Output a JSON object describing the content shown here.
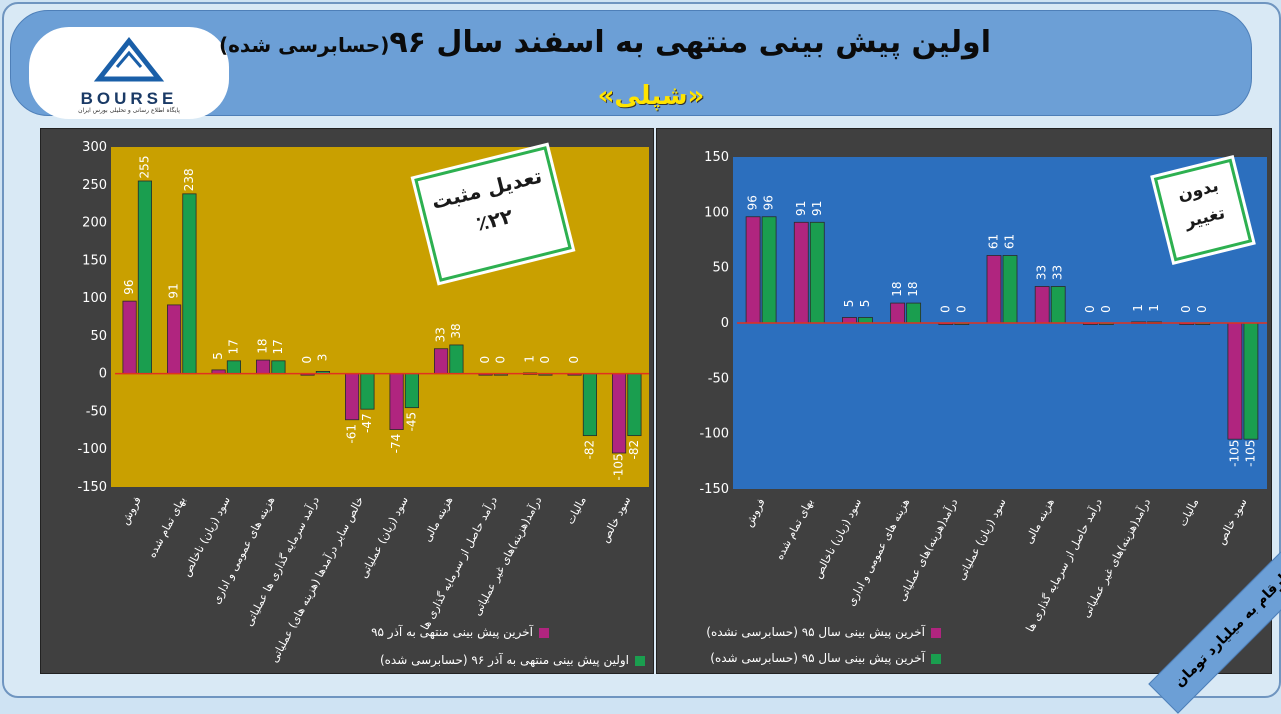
{
  "header": {
    "title": "اولین پیش بینی منتهی به اسفند سال ۹۶",
    "title_suffix": "(حسابرسی شده)",
    "company": "«شپلی»"
  },
  "logo": {
    "name": "BOURSE",
    "mark": "24",
    "tagline": "پایگاه اطلاع رسانی و تحلیلی بورس ایران"
  },
  "unit_note": "ارقام به میلیارد تومان",
  "colors": {
    "magenta": "#b0257f",
    "green": "#1a9e4f",
    "gold_bg": "#c9a000",
    "blue_bg": "#2c6fbe",
    "zero_line": "#e0321e"
  },
  "chart_data": [
    {
      "type": "bar",
      "yticks": [
        "300",
        "250",
        "200",
        "150",
        "100",
        "50",
        "0",
        "-50",
        "-100",
        "-150"
      ],
      "ylim": [
        -150,
        300
      ],
      "categories": [
        "فروش",
        "بهای تمام شده",
        "سود (زیان) ناخالص",
        "هزینه های عمومی و اداری",
        "درآمد سرمایه گذاری ها عملیاتی",
        "خالص سایر درآمدها (هزینه های) عملیاتی",
        "سود (زیان) عملیاتی",
        "هزینه مالی",
        "درآمد حاصل از سرمایه گذاری ها",
        "درآمد(هزینه)های غیر عملیاتی",
        "مالیات",
        "سود خالص"
      ],
      "series": [
        {
          "name": "آخرین پیش بینی منتهی به آذر ۹۵",
          "values": [
            96,
            91,
            5,
            18,
            0,
            -61,
            -74,
            33,
            0,
            1,
            0,
            -105
          ],
          "labels": [
            "96",
            "91",
            "5",
            "18",
            "0",
            "-61",
            "-74",
            "33",
            "0",
            "1",
            "0",
            "-105"
          ]
        },
        {
          "name": "اولین پیش بینی منتهی به آذر ۹۶ (حسابرسی شده)",
          "values": [
            255,
            238,
            17,
            17,
            3,
            -47,
            -45,
            38,
            0,
            0,
            -82,
            -82
          ],
          "labels": [
            "255",
            "238",
            "17",
            "17",
            "3",
            "-47",
            "-45",
            "38",
            "0",
            "0",
            "-82",
            "-82"
          ]
        }
      ],
      "badge": {
        "line1": "تعدیل مثبت",
        "line2": "٪۲۲"
      }
    },
    {
      "type": "bar",
      "yticks": [
        "150",
        "100",
        "50",
        "0",
        "-50",
        "-100",
        "-150"
      ],
      "ylim": [
        -150,
        150
      ],
      "categories": [
        "فروش",
        "بهای تمام شده",
        "سود (زیان) ناخالص",
        "هزینه های عمومی و اداری",
        "درآمد(هزینه)های عملیاتی",
        "سود (زیان) عملیاتی",
        "هزینه مالی",
        "درآمد حاصل از سرمایه گذاری ها",
        "درآمد(هزینه)های غیر عملیاتی",
        "مالیات",
        "سود خالص"
      ],
      "series": [
        {
          "name": "آخرین پیش بینی سال ۹۵ (حسابرسی نشده)",
          "values": [
            96,
            91,
            5,
            18,
            0,
            61,
            33,
            0,
            1,
            0,
            -105
          ],
          "labels": [
            "96",
            "91",
            "5",
            "18",
            "0",
            "61",
            "33",
            "0",
            "1",
            "0",
            "-105"
          ]
        },
        {
          "name": "آخرین پیش بینی سال ۹۵ (حسابرسی شده)",
          "values": [
            96,
            91,
            5,
            18,
            0,
            61,
            33,
            0,
            1,
            0,
            -105
          ],
          "labels": [
            "96",
            "91",
            "5",
            "18",
            "0",
            "61",
            "33",
            "0",
            "1",
            "0",
            "-105"
          ]
        }
      ],
      "badge": {
        "line1": "بدون",
        "line2": "تغییر"
      }
    }
  ]
}
